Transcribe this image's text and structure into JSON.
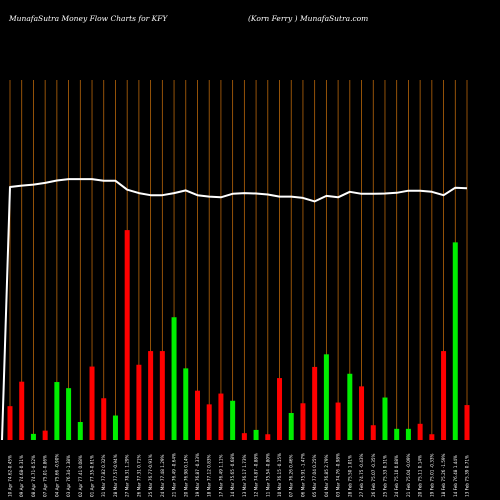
{
  "header": {
    "left": "MunafaSutra  Money Flow  Charts for KFY",
    "right": "(Korn  Ferry )  MunafaSutra.com"
  },
  "colors": {
    "background": "#000000",
    "grid": "#b8660b",
    "up": "#00ee00",
    "down": "#ff0000",
    "line": "#ffffff"
  },
  "chart_data": {
    "type": "bar",
    "bars": [
      {
        "dir": "down",
        "value": 9.4,
        "label": "10 Apr 74.62-0.45%"
      },
      {
        "dir": "down",
        "value": 16.2,
        "label": "09 Apr 74.68-0.31%"
      },
      {
        "dir": "up",
        "value": 1.7,
        "label": "08 Apr 74.71-0.52%"
      },
      {
        "dir": "down",
        "value": 2.6,
        "label": "07 Apr 75.01-0.86%"
      },
      {
        "dir": "up",
        "value": 16.1,
        "label": "04 Apr 75.66 -0.90%"
      },
      {
        "dir": "up",
        "value": 14.4,
        "label": "03 Apr 76.34-1.38%"
      },
      {
        "dir": "up",
        "value": 5.0,
        "label": "02 Apr 77.41 0.08%"
      },
      {
        "dir": "down",
        "value": 20.4,
        "label": "01 Apr 77.35-0.61%"
      },
      {
        "dir": "down",
        "value": 11.6,
        "label": "31 Mar 77.82 0.32%"
      },
      {
        "dir": "up",
        "value": 6.8,
        "label": "28 Mar 77.57-0.94%"
      },
      {
        "dir": "down",
        "value": 58.3,
        "label": "27 Mar 78.31 1.29%"
      },
      {
        "dir": "down",
        "value": 20.9,
        "label": "26 Mar 77.31 0.71%"
      },
      {
        "dir": "down",
        "value": 24.7,
        "label": "25 Mar 76.77-0.91%"
      },
      {
        "dir": "down",
        "value": 24.7,
        "label": "24 Mar 77.48 1.29%"
      },
      {
        "dir": "up",
        "value": 34.1,
        "label": "21 Mar 76.49 -0.64%"
      },
      {
        "dir": "up",
        "value": 19.9,
        "label": "20 Mar 76.98 0.14%"
      },
      {
        "dir": "down",
        "value": 13.7,
        "label": "19 Mar 76.87 -0.33%"
      },
      {
        "dir": "down",
        "value": 9.9,
        "label": "18 Mar 77.12 0.83%"
      },
      {
        "dir": "down",
        "value": 12.9,
        "label": "17 Mar 76.49 1.11%"
      },
      {
        "dir": "up",
        "value": 10.9,
        "label": "14 Mar 75.65 -0.68%"
      },
      {
        "dir": "down",
        "value": 1.9,
        "label": "13 Mar 76.17 1.73%"
      },
      {
        "dir": "up",
        "value": 2.8,
        "label": "12 Mar 74.87 -0.88%"
      },
      {
        "dir": "down",
        "value": 1.6,
        "label": "11 Mar 75.54 -0.80%"
      },
      {
        "dir": "down",
        "value": 17.2,
        "label": "10 Mar 76.15 -0.15%"
      },
      {
        "dir": "up",
        "value": 7.5,
        "label": "07 Mar 76.26 0.46%"
      },
      {
        "dir": "down",
        "value": 10.2,
        "label": "06 Mar 75.91 -1.47%"
      },
      {
        "dir": "down",
        "value": 20.3,
        "label": "05 Mar 77.04 0.25%"
      },
      {
        "dir": "up",
        "value": 23.8,
        "label": "04 Mar 76.85 2.79%"
      },
      {
        "dir": "down",
        "value": 10.4,
        "label": "03 Mar 74.76 -0.98%"
      },
      {
        "dir": "up",
        "value": 18.4,
        "label": "28 Feb 75.50 1.01%"
      },
      {
        "dir": "down",
        "value": 14.9,
        "label": "27 Feb 74.75 -0.43%"
      },
      {
        "dir": "down",
        "value": 4.1,
        "label": "26 Feb 75.07 -0.35%"
      },
      {
        "dir": "up",
        "value": 11.8,
        "label": "25 Feb 75.33 0.31%"
      },
      {
        "dir": "up",
        "value": 3.1,
        "label": "24 Feb 75.10 0.08%"
      },
      {
        "dir": "up",
        "value": 3.1,
        "label": "21 Feb 75.04 -0.09%"
      },
      {
        "dir": "down",
        "value": 4.5,
        "label": "20 Feb 75.11 0.14%"
      },
      {
        "dir": "down",
        "value": 1.6,
        "label": "19 Feb 75.01 -0.33%"
      },
      {
        "dir": "down",
        "value": 24.7,
        "label": "18 Feb 75.26 -1.59%"
      },
      {
        "dir": "up",
        "value": 54.9,
        "label": "14 Feb 76.48 1.44%"
      },
      {
        "dir": "down",
        "value": 9.7,
        "label": "13 Feb 75.39 0.71%"
      }
    ],
    "price_line": [
      0,
      73.8,
      74.2,
      74.5,
      75.0,
      75.7,
      76.1,
      76.1,
      76.1,
      75.6,
      75.6,
      73.0,
      72.0,
      71.4,
      71.4,
      72.0,
      72.8,
      71.4,
      71.0,
      70.8,
      71.8,
      72.0,
      71.9,
      71.6,
      71.0,
      71.0,
      70.6,
      69.6,
      71.2,
      70.8,
      72.4,
      71.8,
      71.8,
      71.9,
      72.1,
      72.7,
      72.7,
      72.4,
      71.4,
      73.6,
      73.4
    ],
    "price_ylim": [
      0,
      105
    ],
    "bar_ylim": [
      0,
      100
    ]
  }
}
